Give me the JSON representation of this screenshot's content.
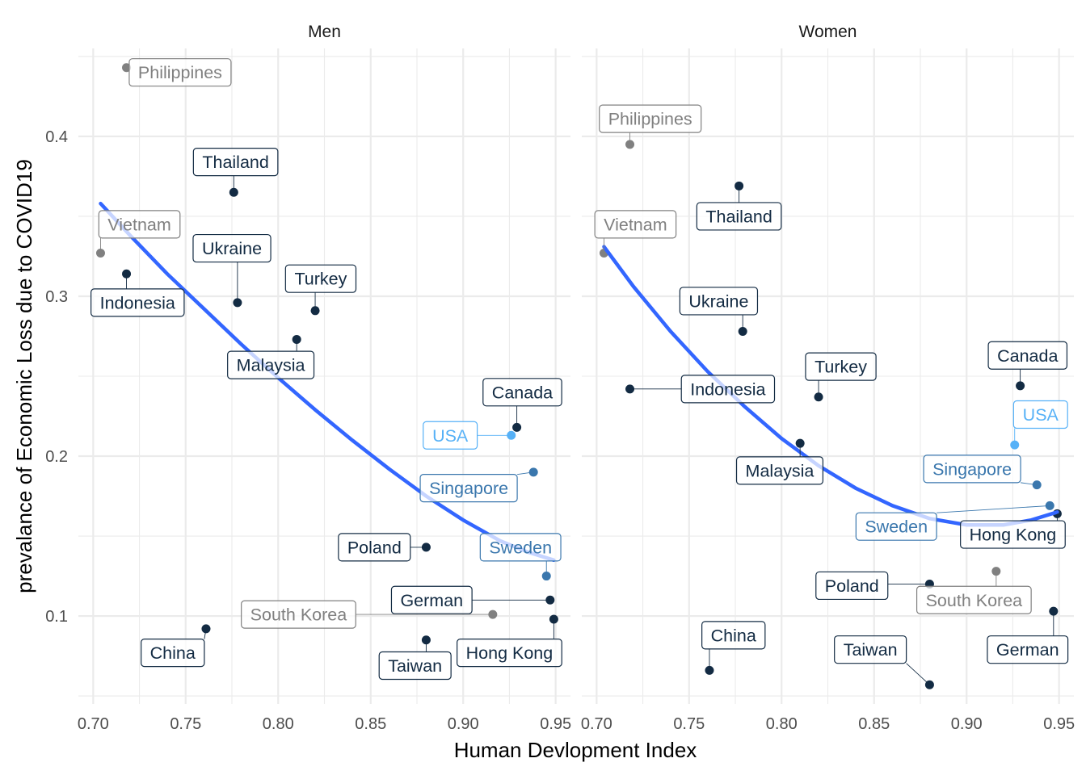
{
  "chart_data": {
    "type": "scatter",
    "xlabel": "Human Devlopment Index",
    "ylabel": "prevalance of Economic Loss due to COVID19",
    "xlim": [
      0.692,
      0.958
    ],
    "ylim": [
      0.045,
      0.455
    ],
    "x_ticks": [
      0.7,
      0.75,
      0.8,
      0.85,
      0.9,
      0.95
    ],
    "x_tick_labels": [
      "0.70",
      "0.75",
      "0.80",
      "0.85",
      "0.90",
      "0.95"
    ],
    "y_ticks": [
      0.1,
      0.2,
      0.3,
      0.4
    ],
    "y_tick_labels": [
      "0.1",
      "0.2",
      "0.3",
      "0.4"
    ],
    "grid": true,
    "legend": "none",
    "colors": {
      "dark": "#132b43",
      "mid": "#3a77ad",
      "light": "#56b1f7",
      "grey": "#808080",
      "smooth": "#3366ff",
      "grid": "#ebebeb"
    },
    "panels": [
      {
        "title": "Men",
        "trend": [
          {
            "x": 0.704,
            "y": 0.358
          },
          {
            "x": 0.72,
            "y": 0.338
          },
          {
            "x": 0.74,
            "y": 0.314
          },
          {
            "x": 0.76,
            "y": 0.292
          },
          {
            "x": 0.78,
            "y": 0.27
          },
          {
            "x": 0.8,
            "y": 0.249
          },
          {
            "x": 0.82,
            "y": 0.229
          },
          {
            "x": 0.84,
            "y": 0.21
          },
          {
            "x": 0.86,
            "y": 0.192
          },
          {
            "x": 0.88,
            "y": 0.175
          },
          {
            "x": 0.9,
            "y": 0.16
          },
          {
            "x": 0.92,
            "y": 0.147
          },
          {
            "x": 0.935,
            "y": 0.14
          },
          {
            "x": 0.949,
            "y": 0.135
          }
        ],
        "points": [
          {
            "name": "Philippines",
            "x": 0.718,
            "y": 0.443,
            "color": "#808080",
            "lx": 0.747,
            "ly": 0.44
          },
          {
            "name": "Thailand",
            "x": 0.776,
            "y": 0.365,
            "color": "#132b43",
            "lx": 0.777,
            "ly": 0.384
          },
          {
            "name": "Vietnam",
            "x": 0.704,
            "y": 0.327,
            "color": "#808080",
            "lx": 0.725,
            "ly": 0.345
          },
          {
            "name": "Indonesia",
            "x": 0.718,
            "y": 0.314,
            "color": "#132b43",
            "lx": 0.724,
            "ly": 0.296
          },
          {
            "name": "Ukraine",
            "x": 0.778,
            "y": 0.296,
            "color": "#132b43",
            "lx": 0.775,
            "ly": 0.33
          },
          {
            "name": "Turkey",
            "x": 0.82,
            "y": 0.291,
            "color": "#132b43",
            "lx": 0.823,
            "ly": 0.311
          },
          {
            "name": "Malaysia",
            "x": 0.81,
            "y": 0.273,
            "color": "#132b43",
            "lx": 0.796,
            "ly": 0.257
          },
          {
            "name": "Canada",
            "x": 0.929,
            "y": 0.218,
            "color": "#132b43",
            "lx": 0.932,
            "ly": 0.24
          },
          {
            "name": "USA",
            "x": 0.926,
            "y": 0.213,
            "color": "#56b1f7",
            "lx": 0.893,
            "ly": 0.213
          },
          {
            "name": "Singapore",
            "x": 0.938,
            "y": 0.19,
            "color": "#3a77ad",
            "lx": 0.903,
            "ly": 0.18
          },
          {
            "name": "Poland",
            "x": 0.88,
            "y": 0.143,
            "color": "#132b43",
            "lx": 0.852,
            "ly": 0.143
          },
          {
            "name": "Sweden",
            "x": 0.945,
            "y": 0.125,
            "color": "#3a77ad",
            "lx": 0.931,
            "ly": 0.143
          },
          {
            "name": "German",
            "x": 0.947,
            "y": 0.11,
            "color": "#132b43",
            "lx": 0.883,
            "ly": 0.11
          },
          {
            "name": "South Korea",
            "x": 0.916,
            "y": 0.101,
            "color": "#808080",
            "lx": 0.811,
            "ly": 0.101
          },
          {
            "name": "Hong Kong",
            "x": 0.949,
            "y": 0.098,
            "color": "#132b43",
            "lx": 0.925,
            "ly": 0.077
          },
          {
            "name": "Taiwan",
            "x": 0.88,
            "y": 0.085,
            "color": "#132b43",
            "lx": 0.874,
            "ly": 0.069
          },
          {
            "name": "China",
            "x": 0.761,
            "y": 0.092,
            "color": "#132b43",
            "lx": 0.743,
            "ly": 0.077
          }
        ]
      },
      {
        "title": "Women",
        "trend": [
          {
            "x": 0.704,
            "y": 0.331
          },
          {
            "x": 0.72,
            "y": 0.306
          },
          {
            "x": 0.74,
            "y": 0.278
          },
          {
            "x": 0.76,
            "y": 0.253
          },
          {
            "x": 0.78,
            "y": 0.231
          },
          {
            "x": 0.8,
            "y": 0.211
          },
          {
            "x": 0.82,
            "y": 0.194
          },
          {
            "x": 0.84,
            "y": 0.18
          },
          {
            "x": 0.86,
            "y": 0.169
          },
          {
            "x": 0.88,
            "y": 0.161
          },
          {
            "x": 0.9,
            "y": 0.157
          },
          {
            "x": 0.92,
            "y": 0.157
          },
          {
            "x": 0.935,
            "y": 0.16
          },
          {
            "x": 0.949,
            "y": 0.165
          }
        ],
        "points": [
          {
            "name": "Philippines",
            "x": 0.718,
            "y": 0.395,
            "color": "#808080",
            "lx": 0.729,
            "ly": 0.411
          },
          {
            "name": "Thailand",
            "x": 0.777,
            "y": 0.369,
            "color": "#132b43",
            "lx": 0.777,
            "ly": 0.35
          },
          {
            "name": "Vietnam",
            "x": 0.704,
            "y": 0.327,
            "color": "#808080",
            "lx": 0.721,
            "ly": 0.345
          },
          {
            "name": "Ukraine",
            "x": 0.779,
            "y": 0.278,
            "color": "#132b43",
            "lx": 0.766,
            "ly": 0.297
          },
          {
            "name": "Turkey",
            "x": 0.82,
            "y": 0.237,
            "color": "#132b43",
            "lx": 0.832,
            "ly": 0.256
          },
          {
            "name": "Indonesia",
            "x": 0.718,
            "y": 0.242,
            "color": "#132b43",
            "lx": 0.771,
            "ly": 0.242
          },
          {
            "name": "Canada",
            "x": 0.929,
            "y": 0.244,
            "color": "#132b43",
            "lx": 0.933,
            "ly": 0.263
          },
          {
            "name": "USA",
            "x": 0.926,
            "y": 0.207,
            "color": "#56b1f7",
            "lx": 0.94,
            "ly": 0.226
          },
          {
            "name": "Malaysia",
            "x": 0.81,
            "y": 0.208,
            "color": "#132b43",
            "lx": 0.799,
            "ly": 0.191
          },
          {
            "name": "Singapore",
            "x": 0.938,
            "y": 0.182,
            "color": "#3a77ad",
            "lx": 0.903,
            "ly": 0.192
          },
          {
            "name": "Sweden",
            "x": 0.945,
            "y": 0.169,
            "color": "#3a77ad",
            "lx": 0.862,
            "ly": 0.156
          },
          {
            "name": "Hong Kong",
            "x": 0.949,
            "y": 0.164,
            "color": "#132b43",
            "lx": 0.925,
            "ly": 0.151
          },
          {
            "name": "South Korea",
            "x": 0.916,
            "y": 0.128,
            "color": "#808080",
            "lx": 0.904,
            "ly": 0.11
          },
          {
            "name": "Poland",
            "x": 0.88,
            "y": 0.12,
            "color": "#132b43",
            "lx": 0.838,
            "ly": 0.119
          },
          {
            "name": "German",
            "x": 0.947,
            "y": 0.103,
            "color": "#132b43",
            "lx": 0.933,
            "ly": 0.079
          },
          {
            "name": "China",
            "x": 0.761,
            "y": 0.066,
            "color": "#132b43",
            "lx": 0.774,
            "ly": 0.088
          },
          {
            "name": "Taiwan",
            "x": 0.88,
            "y": 0.057,
            "color": "#132b43",
            "lx": 0.848,
            "ly": 0.079
          }
        ]
      }
    ]
  }
}
